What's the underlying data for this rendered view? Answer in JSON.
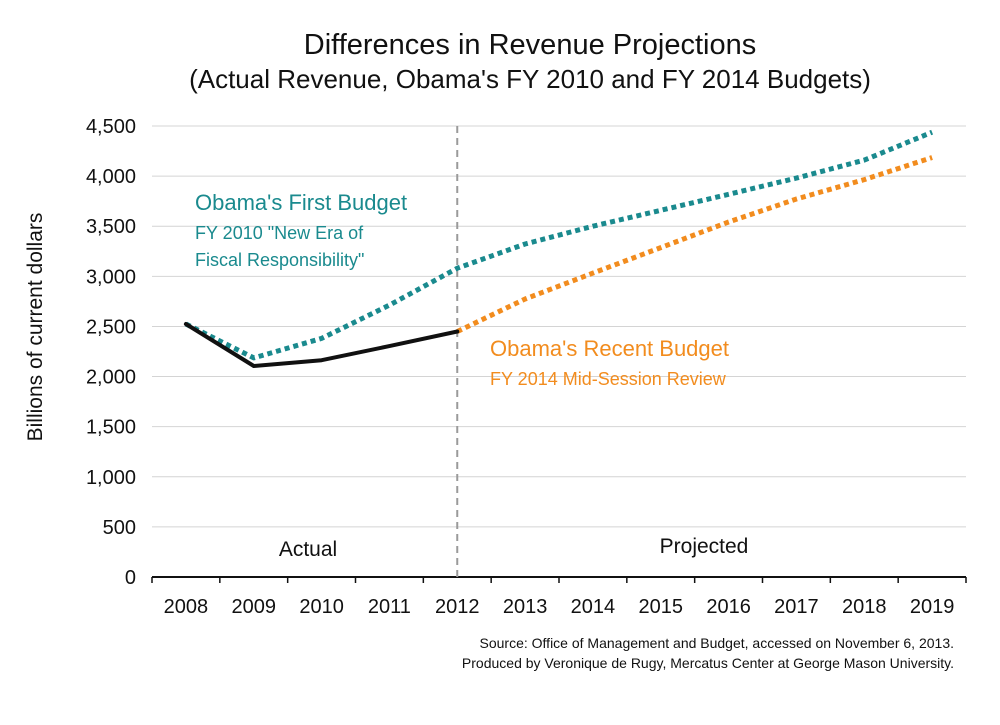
{
  "chart_data": {
    "type": "line",
    "title": "Differences in Revenue Projections",
    "subtitle": "(Actual Revenue, Obama's FY 2010 and FY 2014 Budgets)",
    "ylabel": "Billions of current dollars",
    "xlabel": "",
    "x": [
      2008,
      2009,
      2010,
      2011,
      2012,
      2013,
      2014,
      2015,
      2016,
      2017,
      2018,
      2019
    ],
    "ylim": [
      0,
      4500
    ],
    "yticks": [
      0,
      500,
      1000,
      1500,
      2000,
      2500,
      3000,
      3500,
      4000,
      4500
    ],
    "ytick_labels": [
      "0",
      "500",
      "1,000",
      "1,500",
      "2,000",
      "2,500",
      "3,000",
      "3,500",
      "4,000",
      "4,500"
    ],
    "grid": true,
    "series": [
      {
        "key": "actual",
        "style": "solid",
        "color": "#111111",
        "points": [
          [
            2008,
            2524
          ],
          [
            2009,
            2105
          ],
          [
            2010,
            2163
          ],
          [
            2011,
            2304
          ],
          [
            2012,
            2450
          ]
        ]
      },
      {
        "key": "first_budget",
        "style": "dotted",
        "color": "#1a8a8e",
        "points": [
          [
            2008,
            2524
          ],
          [
            2009,
            2186
          ],
          [
            2010,
            2381
          ],
          [
            2011,
            2713
          ],
          [
            2012,
            3081
          ],
          [
            2013,
            3323
          ],
          [
            2014,
            3500
          ],
          [
            2015,
            3659
          ],
          [
            2016,
            3819
          ],
          [
            2017,
            3980
          ],
          [
            2018,
            4160
          ],
          [
            2019,
            4438
          ]
        ]
      },
      {
        "key": "recent_budget",
        "style": "dotted",
        "color": "#f28c1e",
        "points": [
          [
            2012,
            2450
          ],
          [
            2013,
            2774
          ],
          [
            2014,
            3032
          ],
          [
            2015,
            3287
          ],
          [
            2016,
            3542
          ],
          [
            2017,
            3772
          ],
          [
            2018,
            3965
          ],
          [
            2019,
            4186
          ]
        ]
      }
    ],
    "divider_year": 2012,
    "regions": [
      "Actual",
      "Projected"
    ],
    "annotations": {
      "first": {
        "head": "Obama's First Budget",
        "line1": "FY 2010 \"New Era of",
        "line2": "Fiscal Responsibility\"",
        "color": "#1a8a8e"
      },
      "recent": {
        "head": "Obama's Recent Budget",
        "line1": "FY 2014 Mid-Session Review",
        "color": "#f28c1e"
      }
    },
    "source_line1": "Source: Office of Management and Budget, accessed on November 6, 2013.",
    "source_line2": "Produced by Veronique de Rugy, Mercatus Center at George Mason University."
  }
}
